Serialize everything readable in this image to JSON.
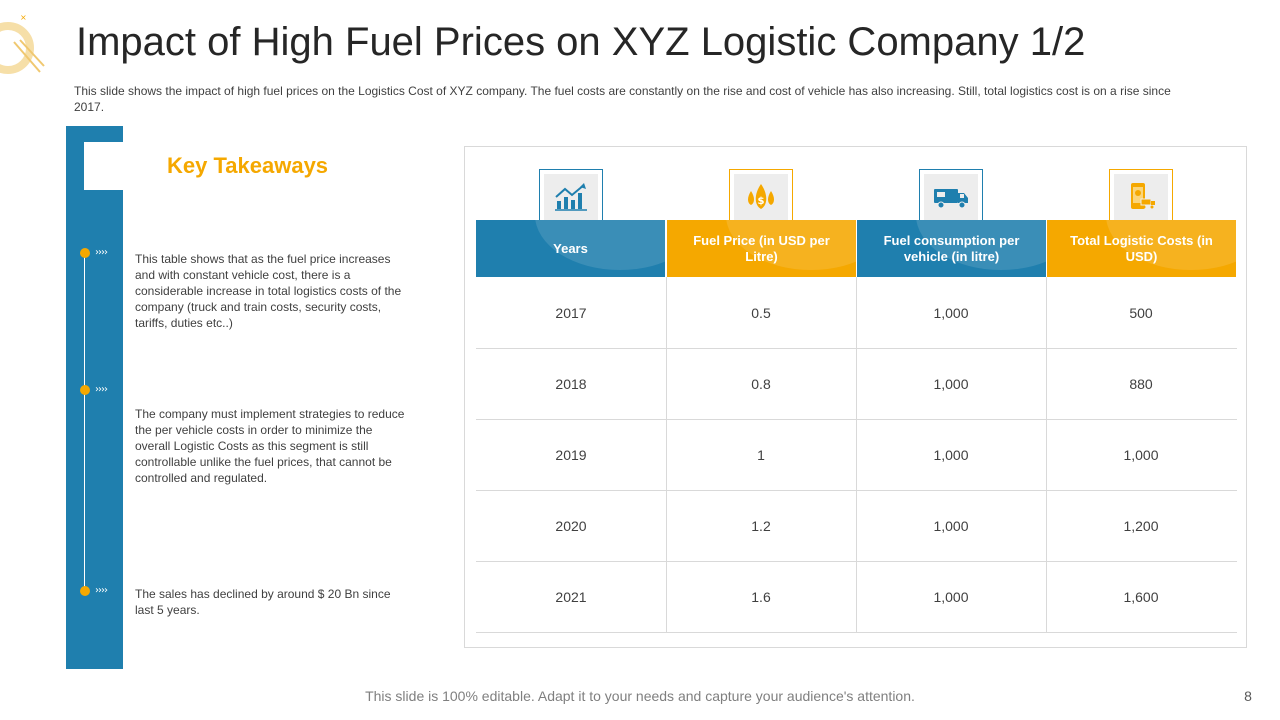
{
  "slide": {
    "title": "Impact of High Fuel Prices on XYZ Logistic Company 1/2",
    "subtitle": "This slide shows the impact of high fuel prices on the Logistics Cost of XYZ company. The fuel costs are constantly on the rise and cost of vehicle has also increasing. Still, total logistics cost is on a rise since 2017.",
    "footer": "This slide is 100% editable. Adapt it to your needs and capture your audience's attention.",
    "page_number": "8"
  },
  "takeaways": {
    "heading": "Key Takeaways",
    "arrow_glyph": "››››",
    "points": [
      "This table shows that as the fuel price increases and with constant vehicle cost, there is a considerable increase in total logistics costs of the company (truck and train costs, security costs, tariffs, duties etc..)",
      "The company must implement strategies to reduce the per vehicle costs in order to minimize the overall Logistic Costs as this segment is still controllable unlike the fuel prices, that cannot be controlled and regulated.",
      "The sales has declined by around $ 20 Bn since last 5 years."
    ]
  },
  "table": {
    "headers": [
      {
        "label": "Years",
        "icon": "growth-chart-icon"
      },
      {
        "label": "Fuel Price (in USD per Litre)",
        "icon": "fuel-drops-icon"
      },
      {
        "label": "Fuel consumption per vehicle (in litre)",
        "icon": "truck-icon"
      },
      {
        "label": "Total Logistic Costs (in USD)",
        "icon": "mobile-delivery-icon"
      }
    ],
    "rows": [
      {
        "year": "2017",
        "fuel_price": "0.5",
        "consumption": "1,000",
        "total": "500"
      },
      {
        "year": "2018",
        "fuel_price": "0.8",
        "consumption": "1,000",
        "total": "880"
      },
      {
        "year": "2019",
        "fuel_price": "1",
        "consumption": "1,000",
        "total": "1,000"
      },
      {
        "year": "2020",
        "fuel_price": "1.2",
        "consumption": "1,000",
        "total": "1,200"
      },
      {
        "year": "2021",
        "fuel_price": "1.6",
        "consumption": "1,000",
        "total": "1,600"
      }
    ]
  },
  "colors": {
    "accent_blue": "#1f7fae",
    "accent_orange": "#f5a800"
  }
}
